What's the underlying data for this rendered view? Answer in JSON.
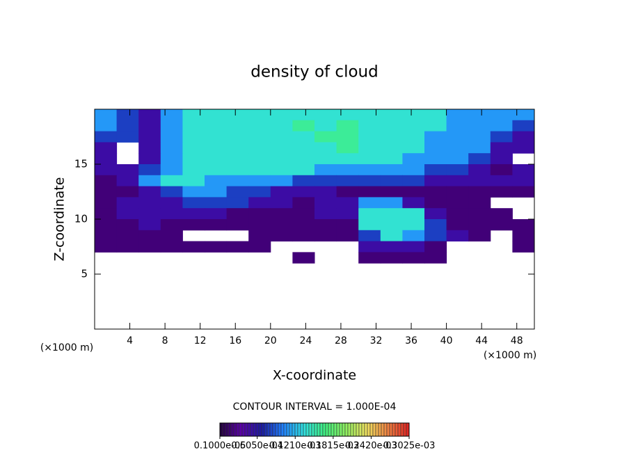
{
  "chart_data": {
    "type": "heatmap",
    "title": "density of cloud",
    "x_label": "X-coordinate",
    "y_label": "Z-coordinate",
    "x_unit": "(×1000 m)",
    "y_unit": "(×1000 m)",
    "contour_note": "CONTOUR INTERVAL = 1.000E-04",
    "xlim": [
      0,
      50
    ],
    "ylim": [
      0,
      20
    ],
    "xticks": [
      4,
      8,
      12,
      16,
      20,
      24,
      28,
      32,
      36,
      40,
      44,
      48
    ],
    "yticks": [
      5,
      10,
      15
    ],
    "x": [
      1.25,
      3.75,
      6.25,
      8.75,
      11.25,
      13.75,
      16.25,
      18.75,
      21.25,
      23.75,
      26.25,
      28.75,
      31.25,
      33.75,
      36.25,
      38.75,
      41.25,
      43.75,
      46.25,
      48.75
    ],
    "y": [
      19.5,
      18.5,
      17.5,
      16.5,
      15.5,
      14.5,
      13.5,
      12.5,
      11.5,
      10.5,
      9.5,
      8.5,
      7.5,
      6.5
    ],
    "z": [
      [
        0.00011,
        8e-05,
        5e-05,
        0.00011,
        0.00014,
        0.00014,
        0.00014,
        0.00014,
        0.00014,
        0.00014,
        0.00014,
        0.00014,
        0.00014,
        0.00014,
        0.00014,
        0.00014,
        0.00011,
        0.00011,
        0.00011,
        0.00011
      ],
      [
        0.00011,
        8e-05,
        5e-05,
        0.00011,
        0.00014,
        0.00014,
        0.00014,
        0.00014,
        0.00014,
        0.00016,
        0.00014,
        0.00016,
        0.00014,
        0.00014,
        0.00014,
        0.00014,
        0.00011,
        0.00011,
        0.00011,
        8e-05
      ],
      [
        8e-05,
        8e-05,
        5e-05,
        0.00011,
        0.00014,
        0.00014,
        0.00014,
        0.00014,
        0.00014,
        0.00014,
        0.00016,
        0.00016,
        0.00014,
        0.00014,
        0.00014,
        0.00011,
        0.00011,
        0.00011,
        8e-05,
        5e-05
      ],
      [
        5e-05,
        null,
        5e-05,
        0.00011,
        0.00014,
        0.00014,
        0.00014,
        0.00014,
        0.00014,
        0.00014,
        0.00014,
        0.00016,
        0.00014,
        0.00014,
        0.00014,
        0.00011,
        0.00011,
        0.00011,
        5e-05,
        5e-05
      ],
      [
        5e-05,
        null,
        5e-05,
        0.00011,
        0.00014,
        0.00014,
        0.00014,
        0.00014,
        0.00014,
        0.00014,
        0.00014,
        0.00014,
        0.00014,
        0.00014,
        0.00011,
        0.00011,
        0.00011,
        8e-05,
        5e-05,
        null
      ],
      [
        5e-05,
        5e-05,
        8e-05,
        0.00011,
        0.00014,
        0.00014,
        0.00014,
        0.00014,
        0.00014,
        0.00014,
        0.00011,
        0.00011,
        0.00011,
        0.00011,
        0.00011,
        8e-05,
        8e-05,
        5e-05,
        2e-05,
        5e-05
      ],
      [
        2e-05,
        5e-05,
        0.00011,
        0.00014,
        0.00014,
        0.00011,
        0.00011,
        0.00011,
        0.00011,
        8e-05,
        8e-05,
        8e-05,
        8e-05,
        8e-05,
        8e-05,
        5e-05,
        5e-05,
        5e-05,
        5e-05,
        5e-05
      ],
      [
        2e-05,
        2e-05,
        5e-05,
        8e-05,
        0.00011,
        0.00011,
        8e-05,
        8e-05,
        5e-05,
        5e-05,
        5e-05,
        2e-05,
        2e-05,
        2e-05,
        2e-05,
        2e-05,
        2e-05,
        2e-05,
        2e-05,
        2e-05
      ],
      [
        2e-05,
        5e-05,
        5e-05,
        5e-05,
        8e-05,
        8e-05,
        8e-05,
        5e-05,
        5e-05,
        2e-05,
        5e-05,
        5e-05,
        0.00011,
        0.00011,
        5e-05,
        2e-05,
        2e-05,
        2e-05,
        null,
        null
      ],
      [
        2e-05,
        5e-05,
        5e-05,
        5e-05,
        5e-05,
        5e-05,
        2e-05,
        2e-05,
        2e-05,
        2e-05,
        5e-05,
        5e-05,
        0.00014,
        0.00014,
        0.00014,
        5e-05,
        2e-05,
        2e-05,
        2e-05,
        null
      ],
      [
        2e-05,
        2e-05,
        5e-05,
        2e-05,
        2e-05,
        2e-05,
        2e-05,
        2e-05,
        2e-05,
        2e-05,
        2e-05,
        2e-05,
        0.00014,
        0.00014,
        0.00014,
        8e-05,
        2e-05,
        2e-05,
        2e-05,
        2e-05
      ],
      [
        2e-05,
        2e-05,
        2e-05,
        2e-05,
        null,
        null,
        null,
        2e-05,
        2e-05,
        2e-05,
        2e-05,
        2e-05,
        8e-05,
        0.00014,
        0.00011,
        8e-05,
        5e-05,
        2e-05,
        null,
        2e-05
      ],
      [
        2e-05,
        2e-05,
        2e-05,
        2e-05,
        2e-05,
        2e-05,
        2e-05,
        2e-05,
        null,
        null,
        null,
        null,
        5e-05,
        5e-05,
        5e-05,
        2e-05,
        null,
        null,
        null,
        2e-05
      ],
      [
        null,
        null,
        null,
        null,
        null,
        null,
        null,
        null,
        null,
        2e-05,
        null,
        null,
        2e-05,
        2e-05,
        2e-05,
        2e-05,
        null,
        null,
        null,
        null
      ]
    ],
    "colormap": [
      "#20003a",
      "#5a00a8",
      "#1a1aa0",
      "#2080ff",
      "#30e0e0",
      "#40f080",
      "#90f060",
      "#f0e060",
      "#f08040",
      "#e02020"
    ],
    "colorbar_ticks": [
      {
        "value": 1e-06,
        "label": "0.1000e-05"
      },
      {
        "value": 6.05e-05,
        "label": "0.6050e-04"
      },
      {
        "value": 0.000121,
        "label": "0.1210e-03"
      },
      {
        "value": 0.0001815,
        "label": "0.1815e-03"
      },
      {
        "value": 0.000242,
        "label": "0.2420e-03"
      },
      {
        "value": 0.0003025,
        "label": "0.3025e-03"
      }
    ]
  }
}
